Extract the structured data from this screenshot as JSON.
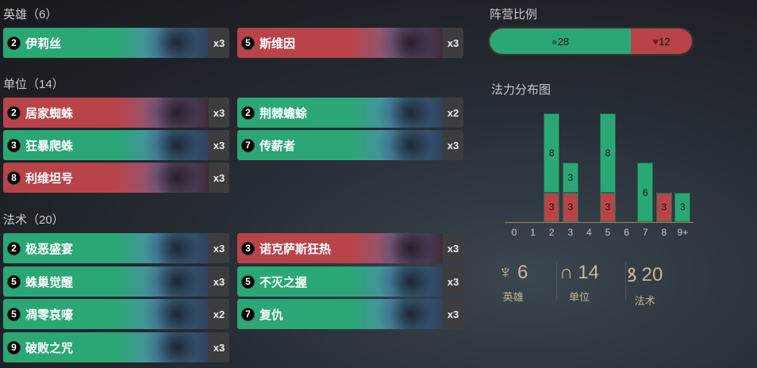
{
  "sections": {
    "champions": "英雄（6）",
    "units": "单位（14）",
    "spells": "法术（20）"
  },
  "champions": [
    {
      "cost": "2",
      "name": "伊莉丝",
      "count": "x3",
      "color": "green"
    },
    {
      "cost": "5",
      "name": "斯维因",
      "count": "x3",
      "color": "red"
    }
  ],
  "units": [
    {
      "cost": "2",
      "name": "居家蜘蛛",
      "count": "x3",
      "color": "red"
    },
    {
      "cost": "2",
      "name": "荆棘蟾蜍",
      "count": "x2",
      "color": "green"
    },
    {
      "cost": "3",
      "name": "狂暴爬蛛",
      "count": "x3",
      "color": "green"
    },
    {
      "cost": "7",
      "name": "传薪者",
      "count": "x3",
      "color": "green"
    },
    {
      "cost": "8",
      "name": "利维坦号",
      "count": "x3",
      "color": "red"
    }
  ],
  "spells": [
    {
      "cost": "2",
      "name": "极恶盛宴",
      "count": "x3",
      "color": "green"
    },
    {
      "cost": "3",
      "name": "诺克萨斯狂热",
      "count": "x3",
      "color": "red"
    },
    {
      "cost": "5",
      "name": "蛛巢觉醒",
      "count": "x3",
      "color": "green"
    },
    {
      "cost": "5",
      "name": "不灭之握",
      "count": "x3",
      "color": "green"
    },
    {
      "cost": "5",
      "name": "凋零哀嚎",
      "count": "x2",
      "color": "green"
    },
    {
      "cost": "7",
      "name": "复仇",
      "count": "x3",
      "color": "green"
    },
    {
      "cost": "9",
      "name": "破败之咒",
      "count": "x3",
      "color": "green"
    }
  ],
  "ratio": {
    "title": "阵营比例",
    "green": "28",
    "red": "12",
    "green_color": "#2ba775",
    "red_color": "#b8444a"
  },
  "chart_data": {
    "type": "bar",
    "title": "法力分布图",
    "categories": [
      "0",
      "1",
      "2",
      "3",
      "4",
      "5",
      "6",
      "7",
      "8",
      "9+"
    ],
    "series": [
      {
        "color": "#b8444a",
        "values": [
          0,
          0,
          3,
          3,
          0,
          3,
          0,
          0,
          3,
          0
        ]
      },
      {
        "color": "#2ba775",
        "values": [
          0,
          0,
          8,
          3,
          0,
          8,
          0,
          6,
          0,
          3
        ]
      }
    ],
    "stacked": true
  },
  "stats": [
    {
      "icon": "champion-helmet-icon",
      "value": "6",
      "label": "英雄"
    },
    {
      "icon": "unit-helmet-icon",
      "value": "14",
      "label": "单位"
    },
    {
      "icon": "spell-swirl-icon",
      "value": "20",
      "label": "法术"
    }
  ]
}
